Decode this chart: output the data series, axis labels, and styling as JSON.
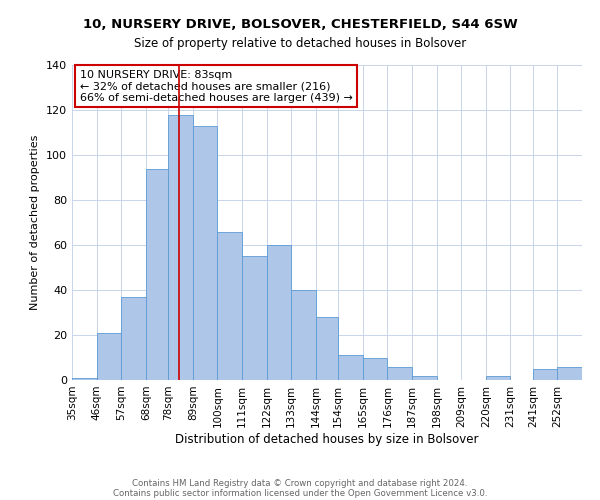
{
  "title": "10, NURSERY DRIVE, BOLSOVER, CHESTERFIELD, S44 6SW",
  "subtitle": "Size of property relative to detached houses in Bolsover",
  "xlabel": "Distribution of detached houses by size in Bolsover",
  "ylabel": "Number of detached properties",
  "bar_labels": [
    "35sqm",
    "46sqm",
    "57sqm",
    "68sqm",
    "78sqm",
    "89sqm",
    "100sqm",
    "111sqm",
    "122sqm",
    "133sqm",
    "144sqm",
    "154sqm",
    "165sqm",
    "176sqm",
    "187sqm",
    "198sqm",
    "209sqm",
    "220sqm",
    "231sqm",
    "241sqm",
    "252sqm"
  ],
  "bar_values": [
    1,
    21,
    37,
    94,
    118,
    113,
    66,
    55,
    60,
    40,
    28,
    11,
    10,
    6,
    2,
    0,
    0,
    2,
    0,
    5,
    6
  ],
  "bar_color": "#aec6e8",
  "bar_edgecolor": "#5b9bd5",
  "ylim": [
    0,
    140
  ],
  "yticks": [
    0,
    20,
    40,
    60,
    80,
    100,
    120,
    140
  ],
  "property_line_x": 83,
  "property_line_color": "#cc0000",
  "annotation_title": "10 NURSERY DRIVE: 83sqm",
  "annotation_line1": "← 32% of detached houses are smaller (216)",
  "annotation_line2": "66% of semi-detached houses are larger (439) →",
  "annotation_box_color": "#ffffff",
  "annotation_box_edgecolor": "#cc0000",
  "footer_line1": "Contains HM Land Registry data © Crown copyright and database right 2024.",
  "footer_line2": "Contains public sector information licensed under the Open Government Licence v3.0.",
  "background_color": "#ffffff",
  "grid_color": "#c8d4e8",
  "bin_edges": [
    35,
    46,
    57,
    68,
    78,
    89,
    100,
    111,
    122,
    133,
    144,
    154,
    165,
    176,
    187,
    198,
    209,
    220,
    231,
    241,
    252,
    263
  ]
}
